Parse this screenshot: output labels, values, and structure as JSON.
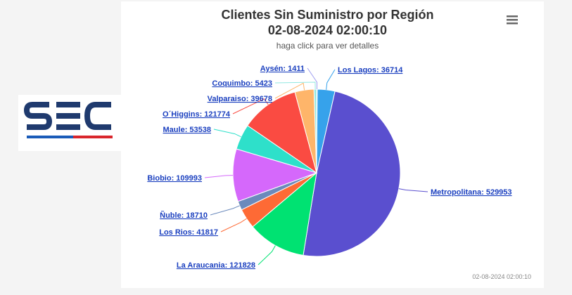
{
  "logo": {
    "text": "SEC",
    "colors": {
      "navy": "#1f3a6e",
      "blue": "#1a5bb8",
      "red": "#d9262c"
    }
  },
  "header": {
    "title_line1": "Clientes Sin Suministro por Región",
    "title_line2": "02-08-2024 02:00:10",
    "subtitle": "haga click para ver detalles"
  },
  "menu_icon": "hamburger-icon",
  "footer": {
    "timestamp": "02-08-2024 02:00:10"
  },
  "chart_data": {
    "type": "pie",
    "title": "Clientes Sin Suministro por Región",
    "subtitle": "02-08-2024 02:00:10",
    "start_angle_deg": 0,
    "slices": [
      {
        "name": "Aysén",
        "value": 1411,
        "color": "#9d9df0",
        "label": "Aysén: 1411",
        "side": "left"
      },
      {
        "name": "Los Lagos",
        "value": 36714,
        "color": "#36a2eb",
        "label": "Los Lagos: 36714",
        "side": "right"
      },
      {
        "name": "Metropolitana",
        "value": 529953,
        "color": "#5a4fcf",
        "label": "Metropolitana: 529953",
        "side": "right"
      },
      {
        "name": "La Araucania",
        "value": 121828,
        "color": "#00e272",
        "label": "La Araucania: 121828",
        "side": "left"
      },
      {
        "name": "Los Rios",
        "value": 41817,
        "color": "#fe6a35",
        "label": "Los Rios: 41817",
        "side": "left"
      },
      {
        "name": "Ñuble",
        "value": 18710,
        "color": "#6b8abc",
        "label": "Ñuble: 18710",
        "side": "left"
      },
      {
        "name": "Biobio",
        "value": 109993,
        "color": "#d568fb",
        "label": "Biobio: 109993",
        "side": "left"
      },
      {
        "name": "Maule",
        "value": 53538,
        "color": "#2ee0ca",
        "label": "Maule: 53538",
        "side": "left"
      },
      {
        "name": "O´Higgins",
        "value": 121774,
        "color": "#fa4b42",
        "label": "O´Higgins: 121774",
        "side": "left"
      },
      {
        "name": "Valparaiso",
        "value": 39678,
        "color": "#feb56a",
        "label": "Valparaiso: 39678",
        "side": "left"
      },
      {
        "name": "Coquimbo",
        "value": 5423,
        "color": "#91e8e1",
        "label": "Coquimbo: 5423",
        "side": "left"
      }
    ]
  }
}
